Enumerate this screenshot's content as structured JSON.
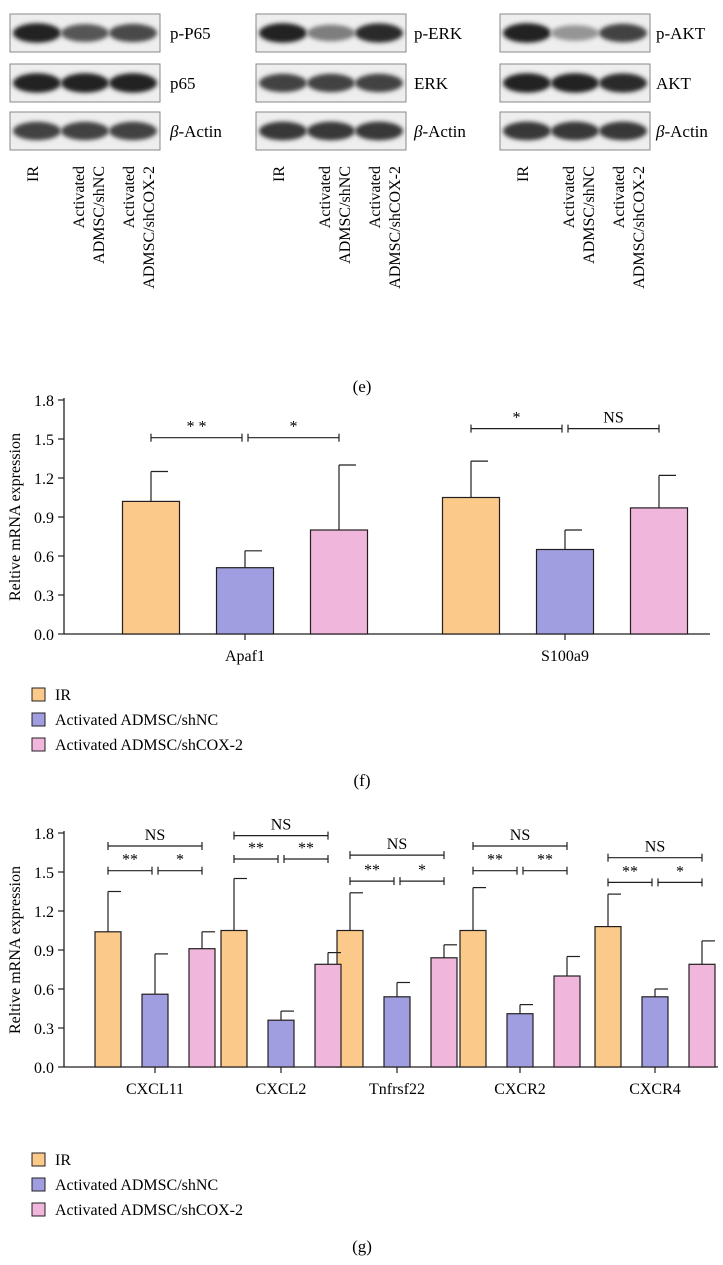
{
  "panel_e": {
    "caption": "(e)",
    "blots": [
      {
        "markers": [
          "p-P65",
          "p65",
          "β-Actin"
        ],
        "lanes": [
          "IR",
          "Activated",
          "ADMSC/shNC",
          "Activated",
          "ADMSC/shCOX-2"
        ],
        "intensity": [
          [
            0.95,
            0.72,
            0.78
          ],
          [
            0.95,
            0.95,
            0.95
          ],
          [
            0.8,
            0.8,
            0.8
          ]
        ]
      },
      {
        "markers": [
          "p-ERK",
          "ERK",
          "β-Actin"
        ],
        "lanes": [
          "IR",
          "Activated",
          "ADMSC/shNC",
          "Activated",
          "ADMSC/shCOX-2"
        ],
        "intensity": [
          [
            0.95,
            0.55,
            0.9
          ],
          [
            0.8,
            0.8,
            0.8
          ],
          [
            0.85,
            0.85,
            0.85
          ]
        ]
      },
      {
        "markers": [
          "p-AKT",
          "AKT",
          "β-Actin"
        ],
        "lanes": [
          "IR",
          "Activated",
          "ADMSC/shNC",
          "Activated",
          "ADMSC/shCOX-2"
        ],
        "intensity": [
          [
            0.95,
            0.45,
            0.8
          ],
          [
            0.95,
            0.95,
            0.9
          ],
          [
            0.85,
            0.85,
            0.85
          ]
        ]
      }
    ]
  },
  "chart_data": [
    {
      "panel": "(f)",
      "type": "bar",
      "ylabel": "Reltive mRNA expression",
      "ylim": [
        0,
        1.8
      ],
      "yticks": [
        "0.0",
        "0.3",
        "0.6",
        "0.9",
        "1.2",
        "1.5",
        "1.8"
      ],
      "categories": [
        "Apaf1",
        "S100a9"
      ],
      "series": [
        {
          "name": "IR",
          "color": "#fbc98a",
          "values": [
            1.02,
            1.05
          ],
          "errors": [
            0.23,
            0.28
          ]
        },
        {
          "name": "Activated ADMSC/shNC",
          "color": "#a09ee0",
          "values": [
            0.51,
            0.65
          ],
          "errors": [
            0.13,
            0.15
          ]
        },
        {
          "name": "Activated ADMSC/shCOX-2",
          "color": "#f1b6db",
          "values": [
            0.8,
            0.97
          ],
          "errors": [
            0.5,
            0.25
          ]
        }
      ],
      "significance": [
        {
          "category": 0,
          "from": 0,
          "to": 1,
          "y": 1.51,
          "label": "* *"
        },
        {
          "category": 0,
          "from": 1,
          "to": 2,
          "y": 1.51,
          "label": "*"
        },
        {
          "category": 1,
          "from": 0,
          "to": 1,
          "y": 1.58,
          "label": "*"
        },
        {
          "category": 1,
          "from": 1,
          "to": 2,
          "y": 1.58,
          "label": "NS"
        }
      ]
    },
    {
      "panel": "(g)",
      "type": "bar",
      "ylabel": "Reltive mRNA expression",
      "ylim": [
        0,
        1.8
      ],
      "yticks": [
        "0.0",
        "0.3",
        "0.6",
        "0.9",
        "1.2",
        "1.5",
        "1.8"
      ],
      "categories": [
        "CXCL11",
        "CXCL2",
        "Tnfrsf22",
        "CXCR2",
        "CXCR4"
      ],
      "series": [
        {
          "name": "IR",
          "color": "#fbc98a",
          "values": [
            1.04,
            1.05,
            1.05,
            1.05,
            1.08
          ],
          "errors": [
            0.31,
            0.4,
            0.29,
            0.33,
            0.25
          ]
        },
        {
          "name": "Activated ADMSC/shNC",
          "color": "#a09ee0",
          "values": [
            0.56,
            0.36,
            0.54,
            0.41,
            0.54
          ],
          "errors": [
            0.31,
            0.07,
            0.11,
            0.07,
            0.06
          ]
        },
        {
          "name": "Activated ADMSC/shCOX-2",
          "color": "#f1b6db",
          "values": [
            0.91,
            0.79,
            0.84,
            0.7,
            0.79
          ],
          "errors": [
            0.13,
            0.09,
            0.1,
            0.15,
            0.18
          ]
        }
      ],
      "significance": [
        {
          "category": 0,
          "from": 0,
          "to": 2,
          "y": 1.7,
          "label": "NS"
        },
        {
          "category": 0,
          "from": 0,
          "to": 1,
          "y": 1.51,
          "label": "**"
        },
        {
          "category": 0,
          "from": 1,
          "to": 2,
          "y": 1.51,
          "label": "*"
        },
        {
          "category": 1,
          "from": 0,
          "to": 2,
          "y": 1.78,
          "label": "NS"
        },
        {
          "category": 1,
          "from": 0,
          "to": 1,
          "y": 1.6,
          "label": "**"
        },
        {
          "category": 1,
          "from": 1,
          "to": 2,
          "y": 1.6,
          "label": "**"
        },
        {
          "category": 2,
          "from": 0,
          "to": 2,
          "y": 1.63,
          "label": "NS"
        },
        {
          "category": 2,
          "from": 0,
          "to": 1,
          "y": 1.43,
          "label": "**"
        },
        {
          "category": 2,
          "from": 1,
          "to": 2,
          "y": 1.43,
          "label": "*"
        },
        {
          "category": 3,
          "from": 0,
          "to": 2,
          "y": 1.7,
          "label": "NS"
        },
        {
          "category": 3,
          "from": 0,
          "to": 1,
          "y": 1.51,
          "label": "**"
        },
        {
          "category": 3,
          "from": 1,
          "to": 2,
          "y": 1.51,
          "label": "**"
        },
        {
          "category": 4,
          "from": 0,
          "to": 2,
          "y": 1.61,
          "label": "NS"
        },
        {
          "category": 4,
          "from": 0,
          "to": 1,
          "y": 1.42,
          "label": "**"
        },
        {
          "category": 4,
          "from": 1,
          "to": 2,
          "y": 1.42,
          "label": "*"
        }
      ]
    }
  ],
  "captions": {
    "f": "(f)",
    "g": "(g)"
  }
}
